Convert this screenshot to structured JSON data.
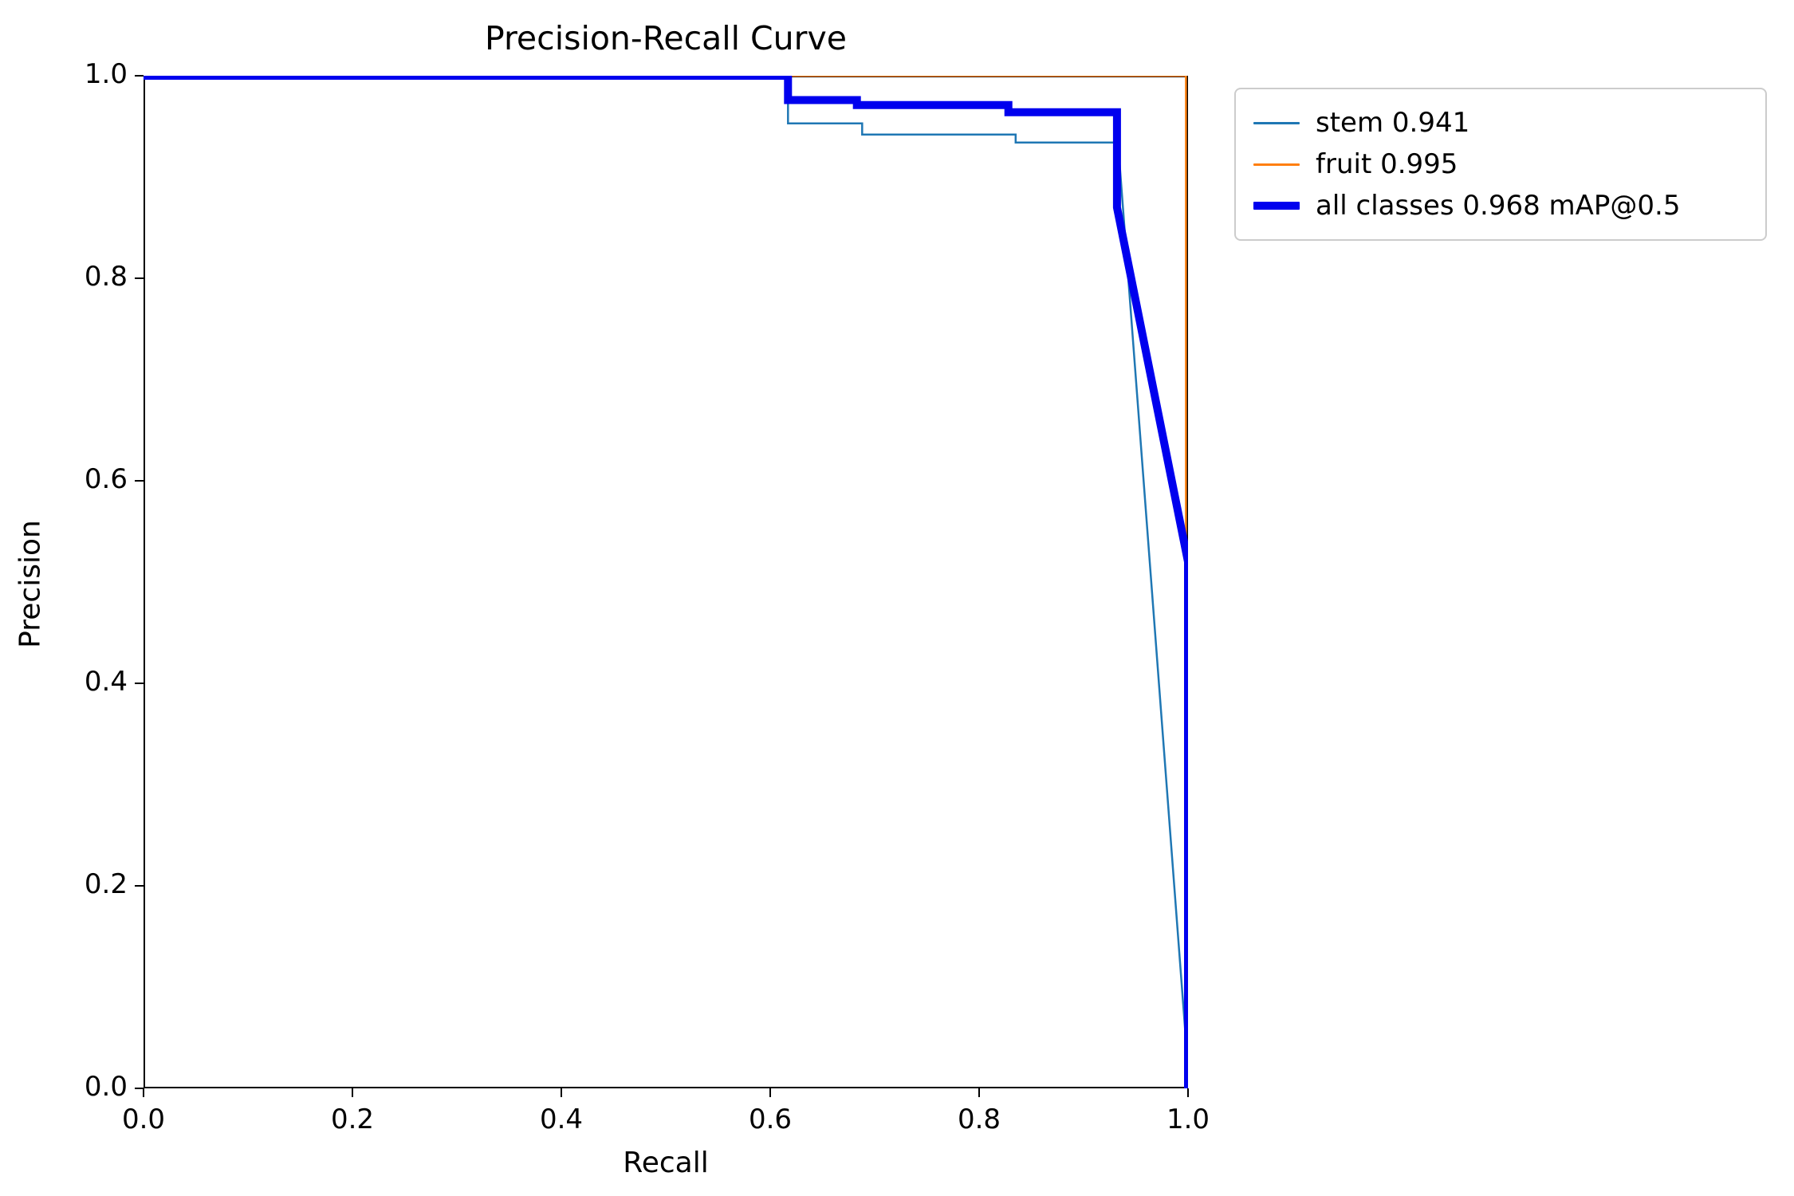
{
  "figure": {
    "title": "Precision-Recall Curve",
    "xlabel": "Recall",
    "ylabel": "Precision"
  },
  "legend": {
    "position": "outside-upper-right",
    "entries": [
      {
        "label": "stem 0.941",
        "color": "#1f77b4",
        "thickness": 3
      },
      {
        "label": "fruit 0.995",
        "color": "#ff7f0e",
        "thickness": 3
      },
      {
        "label": "all classes 0.968 mAP@0.5",
        "color": "#0000ee",
        "thickness": 10
      }
    ]
  },
  "chart_data": {
    "type": "line",
    "title": "Precision-Recall Curve",
    "xlabel": "Recall",
    "ylabel": "Precision",
    "xlim": [
      0.0,
      1.0
    ],
    "ylim": [
      0.0,
      1.0
    ],
    "xticks": [
      0.0,
      0.2,
      0.4,
      0.6,
      0.8,
      1.0
    ],
    "yticks": [
      0.0,
      0.2,
      0.4,
      0.6,
      0.8,
      1.0
    ],
    "grid": false,
    "legend_position": "outside-upper-right",
    "series": [
      {
        "name": "stem",
        "label": "stem 0.941",
        "ap": 0.941,
        "color": "#1f77b4",
        "width": 2.5,
        "points": [
          [
            0.0,
            1.0
          ],
          [
            0.617,
            1.0
          ],
          [
            0.617,
            0.953
          ],
          [
            0.688,
            0.953
          ],
          [
            0.688,
            0.942
          ],
          [
            0.835,
            0.942
          ],
          [
            0.835,
            0.934
          ],
          [
            0.933,
            0.934
          ],
          [
            1.0,
            0.02
          ],
          [
            1.0,
            0.0
          ]
        ]
      },
      {
        "name": "fruit",
        "label": "fruit 0.995",
        "ap": 0.995,
        "color": "#ff7f0e",
        "width": 2.5,
        "points": [
          [
            0.0,
            1.0
          ],
          [
            0.998,
            1.0
          ],
          [
            0.998,
            0.0
          ]
        ]
      },
      {
        "name": "all classes",
        "label": "all classes 0.968 mAP@0.5",
        "ap": 0.968,
        "color": "#0000ee",
        "width": 10,
        "points": [
          [
            0.0,
            1.0
          ],
          [
            0.617,
            1.0
          ],
          [
            0.617,
            0.976
          ],
          [
            0.683,
            0.976
          ],
          [
            0.683,
            0.971
          ],
          [
            0.828,
            0.971
          ],
          [
            0.828,
            0.964
          ],
          [
            0.932,
            0.964
          ],
          [
            0.932,
            0.87
          ],
          [
            1.0,
            0.52
          ],
          [
            1.0,
            0.0
          ]
        ]
      }
    ]
  }
}
